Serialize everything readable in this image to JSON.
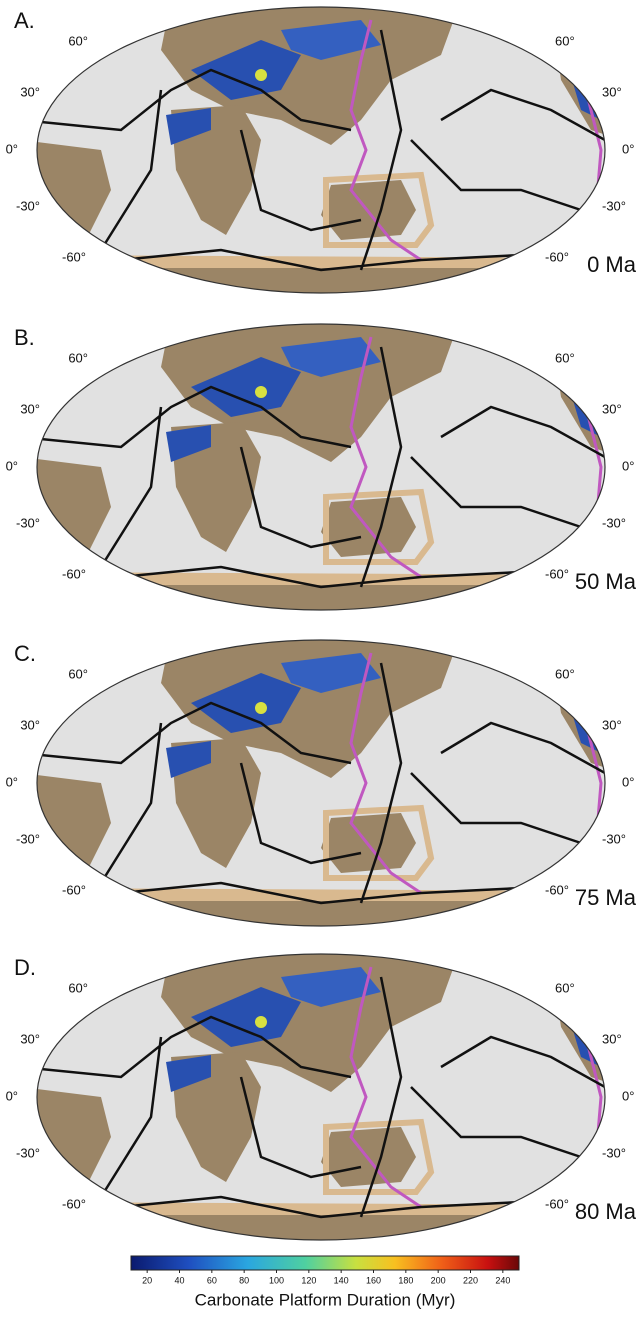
{
  "panels": [
    {
      "label": "A.",
      "age": "0 Ma"
    },
    {
      "label": "B.",
      "age": "50 Ma"
    },
    {
      "label": "C.",
      "age": "75 Ma"
    },
    {
      "label": "D.",
      "age": "80 Ma"
    }
  ],
  "latitude_labels": [
    "60°",
    "30°",
    "0°",
    "-30°",
    "-60°"
  ],
  "colorbar": {
    "title": "Carbonate Platform Duration (Myr)",
    "range": [
      10,
      250
    ],
    "ticks": [
      20,
      40,
      60,
      80,
      100,
      120,
      140,
      160,
      180,
      200,
      220,
      240
    ]
  }
}
